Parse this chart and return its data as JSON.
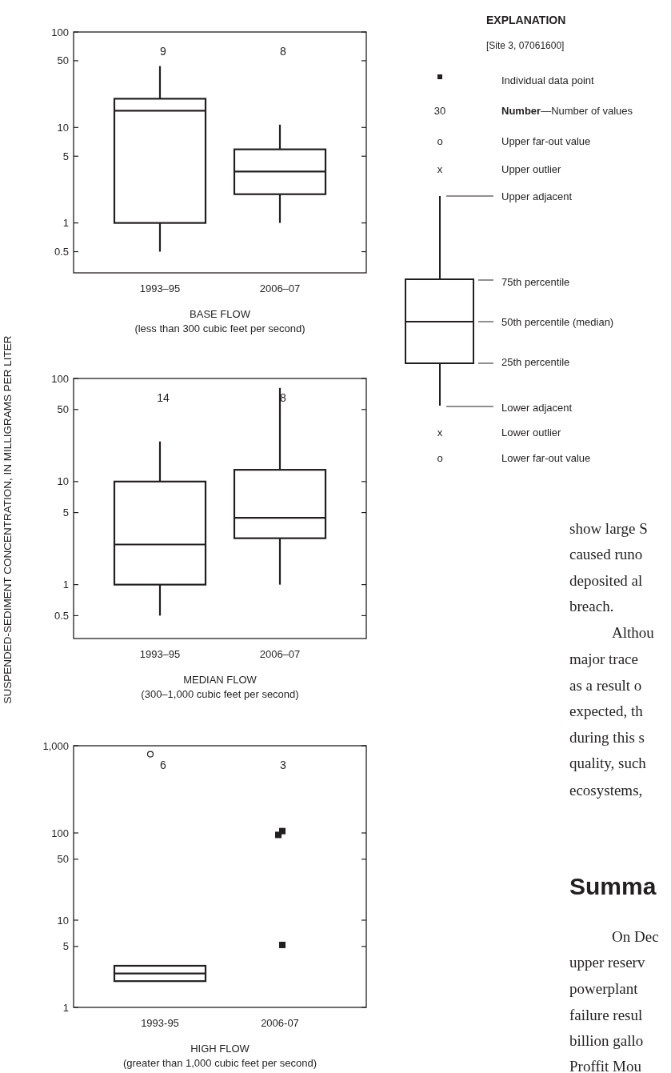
{
  "chart_data": [
    {
      "type": "box",
      "categories": [
        "1993–95",
        "2006–07"
      ],
      "log": true,
      "ylim": [
        0.3,
        100
      ],
      "yticks": [
        100,
        50,
        10,
        5,
        1,
        0.5
      ],
      "xlabel": "BASE FLOW\n(less than 300 cubic feet per second)",
      "boxes": [
        {
          "low": 0.5,
          "q1": 1,
          "median": 15,
          "q3": 20,
          "high": 44
        },
        {
          "low": 1,
          "q1": 2,
          "median": 3.45,
          "q3": 5.9,
          "high": 10.7
        }
      ],
      "annotations": [
        "9",
        "8"
      ]
    },
    {
      "type": "box",
      "categories": [
        "1993–95",
        "2006–07"
      ],
      "log": true,
      "ylim": [
        0.3,
        100
      ],
      "yticks": [
        100,
        50,
        10,
        5,
        1,
        0.5
      ],
      "xlabel": "MEDIAN FLOW\n(300–1,000 cubic feet per second)",
      "ylabel": "SUSPENDED-SEDIMENT CONCENTRATION, IN MILLIGRAMS PER LITER",
      "boxes": [
        {
          "low": 0.5,
          "q1": 1,
          "median": 2.45,
          "q3": 10,
          "high": 24.5
        },
        {
          "low": 1,
          "q1": 2.82,
          "median": 4.45,
          "q3": 13,
          "high": 81
        }
      ],
      "annotations": [
        "14",
        "8"
      ]
    },
    {
      "type": "box",
      "categories": [
        "1993-95",
        "2006-07"
      ],
      "log": true,
      "ylim": [
        1,
        1000
      ],
      "yticks": [
        {
          "value": 1000,
          "label": "1,000"
        },
        100,
        50,
        10,
        5,
        1
      ],
      "xlabel": "HIGH FLOW\n(greater than 1,000 cubic feet per second)",
      "boxes": [
        {
          "low": 2,
          "q1": 2,
          "median": 2.45,
          "q3": 3,
          "high": 3,
          "outliers": [
            800
          ]
        },
        null
      ],
      "series": [
        {
          "type": "scatter",
          "values": [
            null,
            105
          ],
          "color": "#231f20",
          "marker": "square"
        },
        {
          "type": "scatter",
          "values": [
            null,
            95
          ],
          "color": "#231f20",
          "marker": "square"
        },
        {
          "type": "scatter",
          "values": [
            null,
            5.2
          ],
          "color": "#231f20",
          "marker": "square"
        }
      ],
      "annotations": [
        "6",
        "3"
      ]
    },
    {
      "type": "other",
      "title": "EXPLANATION",
      "subtitle": "[Site 3, 07061600]",
      "annotations": [
        "Individual data point",
        "30",
        "Number—Number of values",
        "o",
        "Upper far-out value",
        "x",
        "Upper outlier",
        "Upper adjacent",
        "75th percentile",
        "50th percentile (median)",
        "25th percentile",
        "Lower adjacent",
        "x",
        "Lower outlier",
        "o",
        "Lower far-out value"
      ]
    },
    {
      "type": "other",
      "title": "Summa",
      "annotations": [
        "show large S",
        "caused runo",
        "deposited al",
        "breach.",
        "Althou",
        "major trace",
        "as a result o",
        "expected, th",
        "during this s",
        "quality, such",
        "ecosystems,",
        "On Dec",
        "upper reserv",
        "powerplant",
        "failure resul",
        "billion gallo",
        "Proffit Mou"
      ]
    }
  ]
}
